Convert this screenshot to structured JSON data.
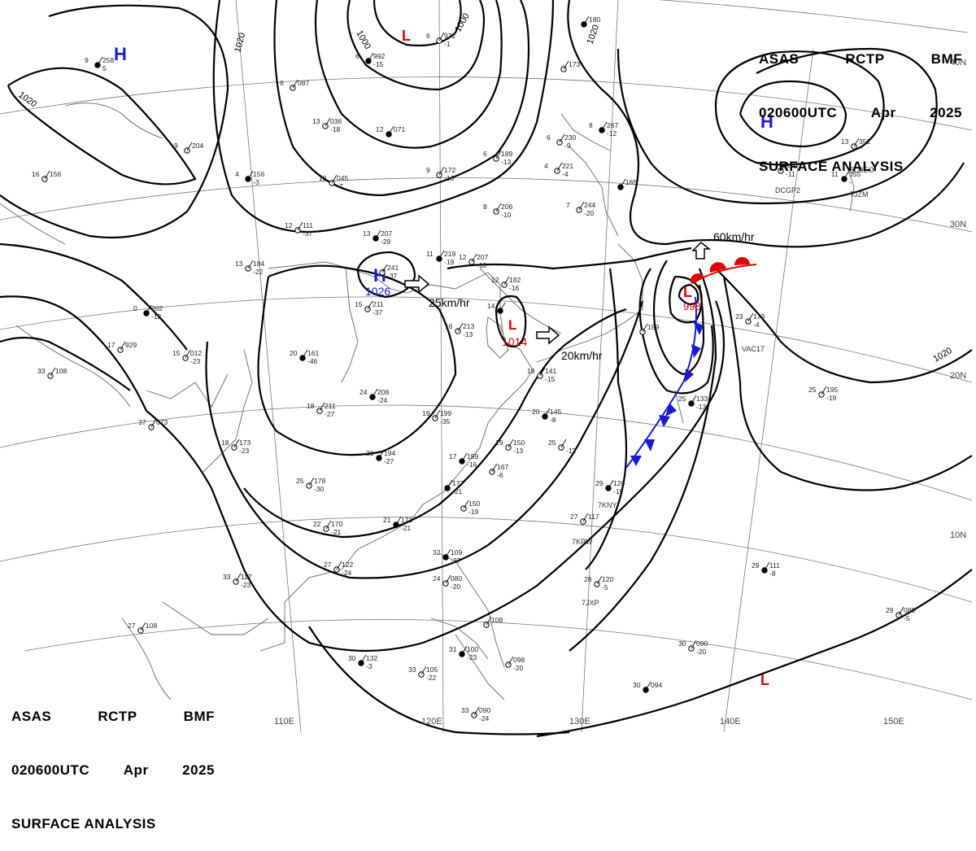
{
  "header": {
    "agency": "ASAS",
    "station": "RCTP",
    "office": "BMF",
    "time": "020600UTC",
    "month": "Apr",
    "year": "2025",
    "product": "SURFACE ANALYSIS"
  },
  "lat_labels": [
    "40N",
    "30N",
    "20N",
    "10N"
  ],
  "lon_labels": [
    "110E",
    "120E",
    "130E",
    "140E",
    "150E"
  ],
  "isobar_labels": [
    "1020",
    "1000",
    "1000",
    "1020",
    "1020",
    "1020"
  ],
  "pressure_centers": [
    {
      "type": "H",
      "value": "",
      "color": "#1a1ad6"
    },
    {
      "type": "L",
      "value": "",
      "color": "#e00000"
    },
    {
      "type": "H",
      "value": "",
      "color": "#1a1ad6"
    },
    {
      "type": "H",
      "value": "1026",
      "color": "#1a1ad6"
    },
    {
      "type": "L",
      "value": "1014",
      "color": "#e00000"
    },
    {
      "type": "L",
      "value": "998",
      "color": "#e00000"
    },
    {
      "type": "L",
      "value": "",
      "color": "#e00000"
    }
  ],
  "motion_labels": [
    "25km/hr",
    "20km/hr",
    "60km/hr"
  ],
  "stations": [
    {
      "t": "9",
      "p": "258",
      "d": "5"
    },
    {
      "t": "9",
      "p": "204",
      "d": ""
    },
    {
      "t": "16",
      "p": "156",
      "d": ""
    },
    {
      "t": "4",
      "p": "156",
      "d": "-3"
    },
    {
      "t": "13",
      "p": "036",
      "d": "-18"
    },
    {
      "t": "13",
      "p": "045",
      "d": "-7"
    },
    {
      "t": "12",
      "p": "071",
      "d": ""
    },
    {
      "t": "6",
      "p": "189",
      "d": "-13"
    },
    {
      "t": "9",
      "p": "172",
      "d": "-16"
    },
    {
      "t": "6",
      "p": "992",
      "d": "-15"
    },
    {
      "t": "6",
      "p": "087",
      "d": ""
    },
    {
      "t": "6",
      "p": "972",
      "d": "-1"
    },
    {
      "t": "",
      "p": "180",
      "d": ""
    },
    {
      "t": "",
      "p": "173",
      "d": ""
    },
    {
      "t": "6",
      "p": "230",
      "d": "-9"
    },
    {
      "t": "8",
      "p": "267",
      "d": "-12"
    },
    {
      "t": "4",
      "p": "221",
      "d": "-4"
    },
    {
      "t": "7",
      "p": "244",
      "d": "-20"
    },
    {
      "t": "",
      "p": "165",
      "d": ""
    },
    {
      "t": "8",
      "p": "206",
      "d": "-10"
    },
    {
      "t": "12",
      "p": "111",
      "d": "-37"
    },
    {
      "t": "13",
      "p": "207",
      "d": "-29"
    },
    {
      "t": "13",
      "p": "184",
      "d": "-22"
    },
    {
      "t": "",
      "p": "241",
      "d": "-37"
    },
    {
      "t": "11",
      "p": "219",
      "d": "-19"
    },
    {
      "t": "12",
      "p": "207",
      "d": "-10"
    },
    {
      "t": "12",
      "p": "182",
      "d": "-16"
    },
    {
      "t": "0",
      "p": "202",
      "d": "-13"
    },
    {
      "t": "15",
      "p": "211",
      "d": "-37"
    },
    {
      "t": "16",
      "p": "213",
      "d": "-13"
    },
    {
      "t": "14",
      "p": "",
      "d": ""
    },
    {
      "t": "17",
      "p": "929",
      "d": ""
    },
    {
      "t": "15",
      "p": "012",
      "d": "-23"
    },
    {
      "t": "20",
      "p": "161",
      "d": "-46"
    },
    {
      "t": "33",
      "p": "108",
      "d": ""
    },
    {
      "t": "37",
      "p": "073",
      "d": ""
    },
    {
      "t": "24",
      "p": "208",
      "d": "-24"
    },
    {
      "t": "18",
      "p": "211",
      "d": "-27"
    },
    {
      "t": "19",
      "p": "199",
      "d": "-35"
    },
    {
      "t": "21",
      "p": "194",
      "d": "-27"
    },
    {
      "t": "18",
      "p": "173",
      "d": "-23"
    },
    {
      "t": "19",
      "p": "141",
      "d": "-15"
    },
    {
      "t": "20",
      "p": "145",
      "d": "-8"
    },
    {
      "t": "19",
      "p": "150",
      "d": "-13"
    },
    {
      "t": "25",
      "p": "",
      "d": "-12"
    },
    {
      "t": "17",
      "p": "199",
      "d": "-16"
    },
    {
      "t": "",
      "p": "167",
      "d": "-6"
    },
    {
      "t": "25",
      "p": "178",
      "d": "-30"
    },
    {
      "t": "",
      "p": "177",
      "d": "-21"
    },
    {
      "t": "",
      "p": "150",
      "d": "-19"
    },
    {
      "t": "22",
      "p": "170",
      "d": "-21"
    },
    {
      "t": "21",
      "p": "171",
      "d": "-21"
    },
    {
      "t": "27",
      "p": "122",
      "d": "-24"
    },
    {
      "t": "33",
      "p": "117",
      "d": "-23"
    },
    {
      "t": "32",
      "p": "109",
      "d": "-27"
    },
    {
      "t": "24",
      "p": "080",
      "d": "-20"
    },
    {
      "t": "",
      "p": "108",
      "d": ""
    },
    {
      "t": "31",
      "p": "100",
      "d": "-23"
    },
    {
      "t": "",
      "p": "098",
      "d": "-20"
    },
    {
      "t": "33",
      "p": "105",
      "d": "-22"
    },
    {
      "t": "30",
      "p": "132",
      "d": "-3"
    },
    {
      "t": "33",
      "p": "090",
      "d": "-24"
    },
    {
      "t": "27",
      "p": "108",
      "d": ""
    },
    {
      "t": "29",
      "p": "120",
      "d": "-19"
    },
    {
      "t": "27",
      "p": "117",
      "d": ""
    },
    {
      "t": "28",
      "p": "120",
      "d": "-5"
    },
    {
      "t": "29",
      "p": "111",
      "d": "-8"
    },
    {
      "t": "29",
      "p": "089",
      "d": "-5"
    },
    {
      "t": "30",
      "p": "090",
      "d": "-20"
    },
    {
      "t": "30",
      "p": "094",
      "d": ""
    },
    {
      "t": "25",
      "p": "195",
      "d": "-19"
    },
    {
      "t": "23",
      "p": "173",
      "d": "-4"
    },
    {
      "t": "25",
      "p": "133",
      "d": "-13"
    },
    {
      "t": "",
      "p": "199",
      "d": ""
    },
    {
      "t": "13",
      "p": "351",
      "d": ""
    },
    {
      "t": "11",
      "p": "355",
      "d": "-"
    },
    {
      "t": "",
      "p": "370",
      "d": "-11"
    }
  ],
  "ship_ids": [
    "7KNY",
    "7KPW",
    "7JXP",
    "5LDEO",
    "DCGP2",
    "7JZM",
    "VAC17"
  ],
  "colors": {
    "isobar": "#000000",
    "high": "#1a1ad6",
    "low": "#e00000",
    "cold_front": "#1a1ad6",
    "warm_front": "#e00000",
    "coastline": "#555555",
    "grid": "#777777"
  }
}
